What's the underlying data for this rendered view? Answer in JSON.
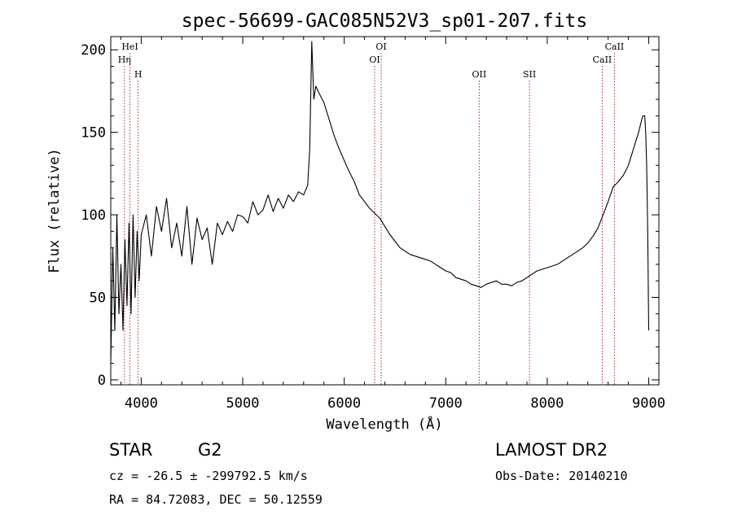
{
  "chart_data": {
    "type": "line",
    "title": "spec-56699-GAC085N52V3_sp01-207.fits",
    "xlabel": "Wavelength (Å)",
    "ylabel": "Flux (relative)",
    "xlim": [
      3700,
      9100
    ],
    "ylim": [
      -3,
      208
    ],
    "x_ticks": [
      4000,
      5000,
      6000,
      7000,
      8000,
      9000
    ],
    "y_ticks": [
      0,
      50,
      100,
      150,
      200
    ],
    "grid": false,
    "series": [
      {
        "color": "#000000",
        "x": [
          3700,
          3720,
          3740,
          3760,
          3780,
          3800,
          3820,
          3840,
          3860,
          3880,
          3900,
          3920,
          3940,
          3960,
          3980,
          4000,
          4050,
          4100,
          4150,
          4200,
          4250,
          4300,
          4350,
          4400,
          4450,
          4500,
          4550,
          4600,
          4650,
          4700,
          4750,
          4800,
          4850,
          4900,
          4950,
          5000,
          5050,
          5100,
          5150,
          5200,
          5250,
          5300,
          5350,
          5400,
          5450,
          5500,
          5550,
          5600,
          5640,
          5660,
          5680,
          5700,
          5720,
          5750,
          5800,
          5850,
          5900,
          5950,
          6000,
          6050,
          6100,
          6150,
          6200,
          6250,
          6300,
          6350,
          6400,
          6450,
          6500,
          6550,
          6600,
          6650,
          6700,
          6750,
          6800,
          6850,
          6900,
          6950,
          7000,
          7050,
          7100,
          7150,
          7200,
          7250,
          7300,
          7350,
          7400,
          7450,
          7500,
          7550,
          7600,
          7650,
          7700,
          7750,
          7800,
          7850,
          7900,
          7950,
          8000,
          8050,
          8100,
          8150,
          8200,
          8250,
          8300,
          8350,
          8400,
          8450,
          8500,
          8550,
          8600,
          8650,
          8700,
          8750,
          8800,
          8850,
          8900,
          8940,
          8960,
          8970,
          8980,
          8990,
          9000
        ],
        "values": [
          10,
          80,
          30,
          100,
          40,
          70,
          30,
          85,
          45,
          95,
          40,
          100,
          50,
          90,
          60,
          88,
          100,
          75,
          105,
          90,
          110,
          80,
          95,
          75,
          105,
          70,
          98,
          85,
          92,
          70,
          95,
          88,
          96,
          90,
          100,
          99,
          95,
          108,
          100,
          103,
          112,
          102,
          110,
          104,
          112,
          108,
          114,
          112,
          118,
          140,
          205,
          170,
          178,
          174,
          168,
          158,
          148,
          140,
          133,
          126,
          120,
          112,
          108,
          104,
          101,
          98,
          93,
          88,
          84,
          80,
          78,
          76,
          75,
          74,
          73,
          72,
          70,
          68,
          66,
          65,
          62,
          61,
          60,
          58,
          57,
          56,
          58,
          59,
          60,
          58,
          58,
          57,
          59,
          60,
          62,
          64,
          66,
          67,
          68,
          69,
          70,
          72,
          74,
          76,
          78,
          80,
          83,
          87,
          92,
          100,
          108,
          117,
          120,
          124,
          130,
          140,
          150,
          160,
          160,
          150,
          130,
          90,
          30
        ]
      }
    ],
    "annotations": [
      {
        "label": "Hη",
        "x": 3835,
        "row": 2
      },
      {
        "label": "HeI",
        "x": 3889,
        "row": 1
      },
      {
        "label": "H",
        "x": 3970,
        "row": 3
      },
      {
        "label": "OI",
        "x": 6300,
        "row": 2
      },
      {
        "label": "OI",
        "x": 6364,
        "row": 1
      },
      {
        "label": "OII",
        "x": 7330,
        "row": 3
      },
      {
        "label": "SII",
        "x": 7825,
        "row": 3
      },
      {
        "label": "CaII",
        "x": 8542,
        "row": 2
      },
      {
        "label": "CaII",
        "x": 8662,
        "row": 1
      }
    ]
  },
  "info": {
    "class": "STAR",
    "subclass": "G2",
    "survey": "LAMOST DR2",
    "cz": "cz = -26.5 ± -299792.5 km/s",
    "obs_date": "Obs-Date: 20140210",
    "coords": "RA =  84.72083, DEC =  50.12559"
  }
}
